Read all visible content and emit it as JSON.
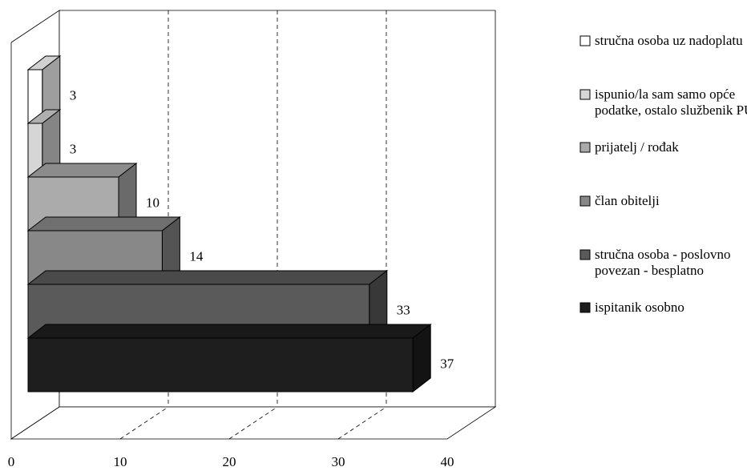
{
  "chart_data": {
    "type": "bar",
    "orientation": "horizontal",
    "stacked": true,
    "three_d": true,
    "title": "",
    "xlabel": "",
    "ylabel": "",
    "xlim": [
      0,
      40
    ],
    "x_ticks": [
      "0",
      "10",
      "20",
      "30",
      "40"
    ],
    "grid": "vertical dashed",
    "legend_position": "right",
    "series": [
      {
        "name": "ispitanik osobno",
        "value": 37,
        "color": "#1e1e1e"
      },
      {
        "name": "stručna osoba - poslovno povezan - besplatno",
        "value": 33,
        "color": "#5a5a5a"
      },
      {
        "name": "član obitelji",
        "value": 14,
        "color": "#888888"
      },
      {
        "name": "prijatelj / rođak",
        "value": 10,
        "color": "#ababab"
      },
      {
        "name": "ispunio/la sam samo opće podatke, ostalo službenik PU-a",
        "value": 3,
        "color": "#d6d6d6"
      },
      {
        "name": "stručna osoba uz nadoplatu",
        "value": 3,
        "color": "#ffffff"
      }
    ]
  },
  "legend": [
    {
      "lines": [
        "stručna osoba uz nadoplatu"
      ],
      "color": "#ffffff"
    },
    {
      "lines": [
        "ispunio/la sam samo opće",
        "podatke, ostalo službenik PU-a"
      ],
      "color": "#d6d6d6"
    },
    {
      "lines": [
        "prijatelj / rođak"
      ],
      "color": "#ababab"
    },
    {
      "lines": [
        "član obitelji"
      ],
      "color": "#888888"
    },
    {
      "lines": [
        "stručna osoba - poslovno",
        "povezan - besplatno"
      ],
      "color": "#5a5a5a"
    },
    {
      "lines": [
        "ispitanik osobno"
      ],
      "color": "#1e1e1e"
    }
  ]
}
